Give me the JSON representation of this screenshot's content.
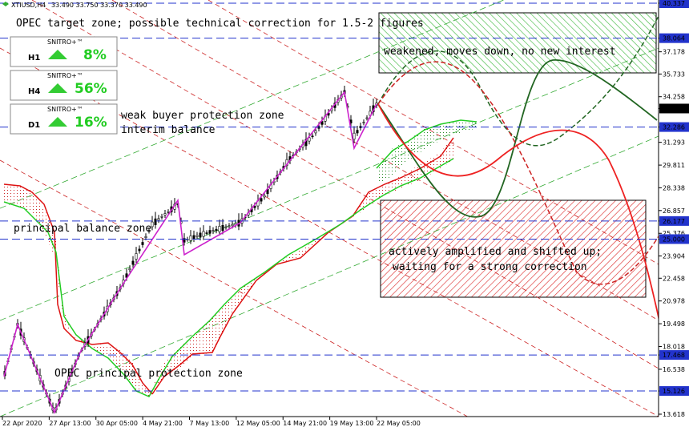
{
  "header": {
    "symbol": "XTIUSD,H4",
    "quote": "33.490 33.750 33.370 33.490"
  },
  "chart_data": {
    "type": "candlestick",
    "symbol": "XTIUSD",
    "timeframe": "H4",
    "ohlc": {
      "open": 33.49,
      "high": 33.75,
      "low": 33.37,
      "close": 33.49
    },
    "ylim": [
      13.618,
      40.337
    ],
    "price_axis_ticks": [
      "40.337",
      "38.064",
      "37.178",
      "35.733",
      "34.258",
      "33.490",
      "32.286",
      "31.293",
      "29.811",
      "28.338",
      "26.857",
      "26.177",
      "25.376",
      "25.000",
      "23.904",
      "22.458",
      "20.978",
      "19.498",
      "18.018",
      "17.468",
      "16.538",
      "15.126",
      "13.618"
    ],
    "price_axis_ticks_values": [
      40.337,
      38.064,
      37.178,
      35.733,
      34.258,
      33.49,
      32.286,
      31.293,
      29.811,
      28.338,
      26.857,
      26.177,
      25.376,
      25.0,
      23.904,
      22.458,
      20.978,
      19.498,
      18.018,
      17.468,
      16.538,
      15.126,
      13.618
    ],
    "x_ticks": [
      "22 Apr 2020",
      "27 Apr 13:00",
      "30 Apr 05:00",
      "4 May 21:00",
      "7 May 13:00",
      "12 May 05:00",
      "14 May 21:00",
      "19 May 13:00",
      "22 May 05:00"
    ],
    "horizontal_levels": [
      {
        "price": 40.337,
        "label": "40.337"
      },
      {
        "price": 38.064,
        "label": "38.064"
      },
      {
        "price": 32.286,
        "label": "32.286"
      },
      {
        "price": 26.177,
        "label": "26.177"
      },
      {
        "price": 25.0,
        "label": "25.000"
      },
      {
        "price": 17.468,
        "label": "17.468"
      },
      {
        "price": 15.126,
        "label": "15.126"
      }
    ],
    "current_price": 33.49,
    "zones": [
      {
        "name": "green target zone",
        "price_from": 35.6,
        "price_to": 39.8,
        "color": "#33bb33"
      },
      {
        "name": "red correction zone",
        "price_from": 21.3,
        "price_to": 27.5,
        "color": "#dd3333"
      }
    ],
    "annotations": [
      "OPEC target zone;  possible technical correction for 1.5-2 figures",
      "weakened, moves down, no new interest",
      "weak buyer protection zone",
      "interim balance",
      "principal balance zone",
      "actively amplified and shifted up;",
      "waiting for a strong correction",
      "OPEC principal protection zone"
    ],
    "indicator_panels": [
      {
        "tf": "H1",
        "brand": "SNITRO+™",
        "value": "8%",
        "direction": "up"
      },
      {
        "tf": "H4",
        "brand": "SNITRO+™",
        "value": "56%",
        "direction": "up"
      },
      {
        "tf": "D1",
        "brand": "SNITRO+™",
        "value": "16%",
        "direction": "up"
      }
    ],
    "colors": {
      "up_arrow": "#33cc33",
      "pct_text": "#22cc22",
      "level_line": "#2233cc",
      "current_price_bg": "#000000",
      "level_bg": "#2233cc",
      "zigzag": "#cc22cc",
      "forecast_green": "#226622",
      "forecast_red": "#cc2222",
      "upper_env": "#22cc22",
      "lower_env": "#dd1111"
    }
  }
}
